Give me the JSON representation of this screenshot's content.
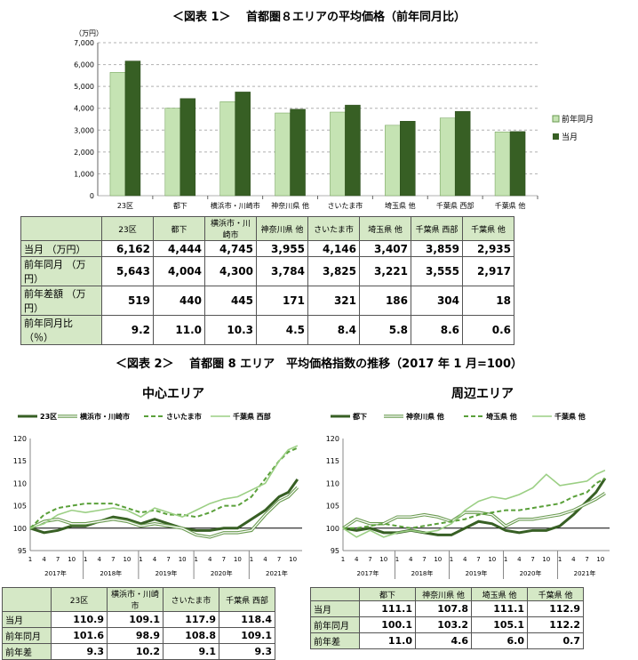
{
  "fig1": {
    "title": "＜図表 1＞　 首都圏８エリアの平均価格（前年同月比）",
    "unit_label": "（万円）",
    "legend": {
      "prev": "前年同月",
      "curr": "当月"
    },
    "colors": {
      "prev": "#c5e3b3",
      "curr": "#375f24",
      "grid": "#999999"
    }
  },
  "chart_data": [
    {
      "type": "bar",
      "title": "首都圏８エリアの平均価格（前年同月比）",
      "ylabel": "（万円）",
      "ylim": [
        0,
        7000
      ],
      "yticks": [
        "0",
        "1,000",
        "2,000",
        "3,000",
        "4,000",
        "5,000",
        "6,000",
        "7,000"
      ],
      "categories": [
        "23区",
        "都下",
        "横浜市・川崎市",
        "神奈川県 他",
        "さいたま市",
        "埼玉県 他",
        "千葉県 西部",
        "千葉県 他"
      ],
      "series": [
        {
          "name": "前年同月",
          "values": [
            5643,
            4004,
            4300,
            3784,
            3825,
            3221,
            3555,
            2917
          ]
        },
        {
          "name": "当月",
          "values": [
            6162,
            4444,
            4745,
            3955,
            4146,
            3407,
            3859,
            2935
          ]
        }
      ]
    },
    {
      "type": "line",
      "title": "中心エリア",
      "ylim": [
        95,
        120
      ],
      "yticks": [
        "95",
        "100",
        "105",
        "110",
        "115",
        "120"
      ],
      "month_ticks": [
        "1",
        "4",
        "7",
        "10"
      ],
      "years": [
        "2017年",
        "2018年",
        "2019年",
        "2020年",
        "2021年"
      ],
      "x": [
        "2017-01",
        "2017-04",
        "2017-07",
        "2017-10",
        "2018-01",
        "2018-04",
        "2018-07",
        "2018-10",
        "2019-01",
        "2019-04",
        "2019-07",
        "2019-10",
        "2020-01",
        "2020-04",
        "2020-07",
        "2020-10",
        "2021-01",
        "2021-04",
        "2021-07",
        "2021-09",
        "2021-11"
      ],
      "series": [
        {
          "name": "23区",
          "values": [
            100,
            99,
            99.5,
            100.5,
            100.5,
            101.5,
            102.5,
            102,
            101,
            102,
            101,
            100,
            99.5,
            99.5,
            100,
            100,
            102,
            104,
            107,
            108,
            110.9
          ]
        },
        {
          "name": "横浜市・川崎市",
          "values": [
            100,
            101.5,
            102,
            101,
            101,
            101.5,
            102,
            101.5,
            100.5,
            101,
            100.5,
            100,
            98.5,
            98,
            99,
            99,
            99.5,
            103,
            106,
            107,
            109.1
          ]
        },
        {
          "name": "さいたま市",
          "values": [
            100,
            103,
            104.5,
            105,
            105.5,
            105.5,
            105.5,
            104.5,
            103.5,
            104,
            103,
            103,
            102.5,
            103.5,
            105,
            105,
            107,
            111,
            115,
            117,
            117.9
          ]
        },
        {
          "name": "千葉県 西部",
          "values": [
            100,
            101,
            103,
            104,
            103.5,
            104,
            104.5,
            104,
            102.5,
            104.5,
            103.5,
            102.5,
            104,
            105.5,
            106.5,
            107,
            108.5,
            110,
            115,
            117.5,
            118.4
          ]
        }
      ]
    },
    {
      "type": "line",
      "title": "周辺エリア",
      "ylim": [
        95,
        120
      ],
      "yticks": [
        "95",
        "100",
        "105",
        "110",
        "115",
        "120"
      ],
      "month_ticks": [
        "1",
        "4",
        "7",
        "10"
      ],
      "years": [
        "2017年",
        "2018年",
        "2019年",
        "2020年",
        "2021年"
      ],
      "x": [
        "2017-01",
        "2017-04",
        "2017-07",
        "2017-10",
        "2018-01",
        "2018-04",
        "2018-07",
        "2018-10",
        "2019-01",
        "2019-04",
        "2019-07",
        "2019-10",
        "2020-01",
        "2020-04",
        "2020-07",
        "2020-10",
        "2021-01",
        "2021-04",
        "2021-07",
        "2021-09",
        "2021-11"
      ],
      "series": [
        {
          "name": "都下",
          "values": [
            100,
            99.5,
            100,
            99,
            99,
            99.5,
            99,
            98.5,
            98.5,
            100,
            101.5,
            101,
            99.5,
            99,
            99.5,
            99.5,
            100.5,
            103,
            106,
            108,
            111.1
          ]
        },
        {
          "name": "神奈川県 他",
          "values": [
            100,
            102,
            101,
            101,
            102.5,
            102.5,
            103,
            102.5,
            101.5,
            103.5,
            103.5,
            103,
            100.5,
            102,
            102,
            102.5,
            103,
            104,
            105.5,
            106.5,
            107.8
          ]
        },
        {
          "name": "埼玉県 他",
          "values": [
            100,
            100,
            100.5,
            101,
            100.5,
            100,
            100.5,
            101,
            101.5,
            102,
            103,
            103.5,
            104,
            104,
            104.5,
            105,
            105.5,
            107,
            108,
            110,
            111.1
          ]
        },
        {
          "name": "千葉県 他",
          "values": [
            100,
            98,
            99.5,
            98,
            99,
            99.5,
            99,
            99.5,
            101,
            104,
            106,
            107,
            106.5,
            107.5,
            109,
            112,
            109.5,
            110,
            110.5,
            112,
            112.9
          ]
        }
      ]
    }
  ],
  "table1": {
    "headers": [
      "23区",
      "都下",
      "横浜市・川崎市",
      "神奈川県 他",
      "さいたま市",
      "埼玉県 他",
      "千葉県 西部",
      "千葉県 他"
    ],
    "rows": [
      {
        "label": "当月 （万円）",
        "values": [
          "6,162",
          "4,444",
          "4,745",
          "3,955",
          "4,146",
          "3,407",
          "3,859",
          "2,935"
        ]
      },
      {
        "label": "前年同月 （万円）",
        "values": [
          "5,643",
          "4,004",
          "4,300",
          "3,784",
          "3,825",
          "3,221",
          "3,555",
          "2,917"
        ]
      },
      {
        "label": "前年差額 （万円）",
        "values": [
          "519",
          "440",
          "445",
          "171",
          "321",
          "186",
          "304",
          "18"
        ]
      },
      {
        "label": "前年同月比 （％）",
        "values": [
          "9.2",
          "11.0",
          "10.3",
          "4.5",
          "8.4",
          "5.8",
          "8.6",
          "0.6"
        ]
      }
    ]
  },
  "fig2": {
    "title": "＜図表 2＞　 首都圏 8 エリア　平均価格指数の推移（2017 年 1 月=100）",
    "left_title": "中心エリア",
    "right_title": "周辺エリア"
  },
  "table2a": {
    "headers": [
      "23区",
      "横浜市・川崎市",
      "さいたま市",
      "千葉県 西部"
    ],
    "rows": [
      {
        "label": "当月",
        "values": [
          "110.9",
          "109.1",
          "117.9",
          "118.4"
        ]
      },
      {
        "label": "前年同月",
        "values": [
          "101.6",
          "98.9",
          "108.8",
          "109.1"
        ]
      },
      {
        "label": "前年差",
        "values": [
          "9.3",
          "10.2",
          "9.1",
          "9.3"
        ]
      }
    ]
  },
  "table2b": {
    "headers": [
      "都下",
      "神奈川県 他",
      "埼玉県 他",
      "千葉県 他"
    ],
    "rows": [
      {
        "label": "当月",
        "values": [
          "111.1",
          "107.8",
          "111.1",
          "112.9"
        ]
      },
      {
        "label": "前年同月",
        "values": [
          "100.1",
          "103.2",
          "105.1",
          "112.2"
        ]
      },
      {
        "label": "前年差",
        "values": [
          "11.0",
          "4.6",
          "6.0",
          "0.7"
        ]
      }
    ]
  }
}
